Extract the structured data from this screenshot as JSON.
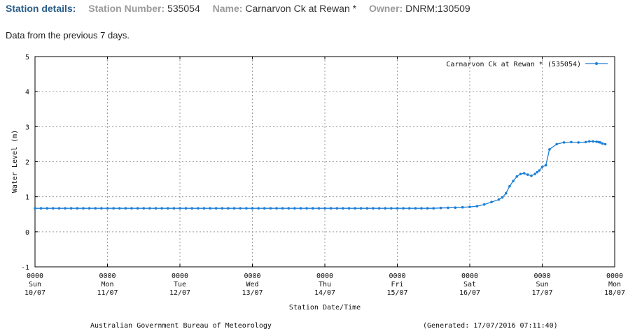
{
  "header": {
    "station_details_label": "Station details:",
    "station_number_label": "Station Number:",
    "station_number": "535054",
    "name_label": "Name:",
    "name": "Carnarvon Ck at Rewan *",
    "owner_label": "Owner:",
    "owner": "DNRM:130509"
  },
  "subtitle": "Data from the previous 7 days.",
  "footer": {
    "agency": "Australian Government Bureau of Meteorology",
    "generated": "(Generated: 17/07/2016 07:11:40)"
  },
  "colors": {
    "series": "#1c7fd6",
    "grid": "#9a9a9a",
    "header_label": "#2a5d8a"
  },
  "chart_data": {
    "type": "line",
    "xlabel": "Station Date/Time",
    "ylabel": "Water Level (m)",
    "ylim": [
      -1,
      5
    ],
    "y_ticks": [
      "-1",
      "0",
      "1",
      "2",
      "3",
      "4",
      "5"
    ],
    "xlim_days": [
      0,
      8
    ],
    "x_ticks": [
      {
        "time": "0000",
        "day": "Sun",
        "date": "10/07"
      },
      {
        "time": "0000",
        "day": "Mon",
        "date": "11/07"
      },
      {
        "time": "0000",
        "day": "Tue",
        "date": "12/07"
      },
      {
        "time": "0000",
        "day": "Wed",
        "date": "13/07"
      },
      {
        "time": "0000",
        "day": "Thu",
        "date": "14/07"
      },
      {
        "time": "0000",
        "day": "Fri",
        "date": "15/07"
      },
      {
        "time": "0000",
        "day": "Sat",
        "date": "16/07"
      },
      {
        "time": "0000",
        "day": "Sun",
        "date": "17/07"
      },
      {
        "time": "0000",
        "day": "Mon",
        "date": "18/07"
      }
    ],
    "grid": true,
    "legend_position": "top-right",
    "series": [
      {
        "name": "Carnarvon Ck at Rewan * (535054)",
        "x": [
          0.0,
          0.5,
          1.0,
          1.5,
          2.0,
          2.5,
          3.0,
          3.5,
          4.0,
          4.5,
          5.0,
          5.5,
          5.6,
          5.8,
          6.0,
          6.1,
          6.2,
          6.3,
          6.4,
          6.45,
          6.5,
          6.55,
          6.6,
          6.65,
          6.7,
          6.75,
          6.8,
          6.85,
          6.9,
          6.93,
          6.96,
          7.0,
          7.05,
          7.1,
          7.2,
          7.3,
          7.4,
          7.5,
          7.6,
          7.65,
          7.7,
          7.75,
          7.78,
          7.8,
          7.83,
          7.87
        ],
        "y": [
          0.67,
          0.67,
          0.67,
          0.67,
          0.67,
          0.67,
          0.67,
          0.67,
          0.67,
          0.67,
          0.67,
          0.67,
          0.68,
          0.69,
          0.71,
          0.73,
          0.78,
          0.85,
          0.92,
          0.98,
          1.1,
          1.3,
          1.45,
          1.58,
          1.65,
          1.67,
          1.63,
          1.6,
          1.65,
          1.7,
          1.75,
          1.85,
          1.9,
          2.35,
          2.5,
          2.55,
          2.56,
          2.55,
          2.56,
          2.58,
          2.58,
          2.57,
          2.56,
          2.55,
          2.52,
          2.5
        ]
      }
    ]
  }
}
